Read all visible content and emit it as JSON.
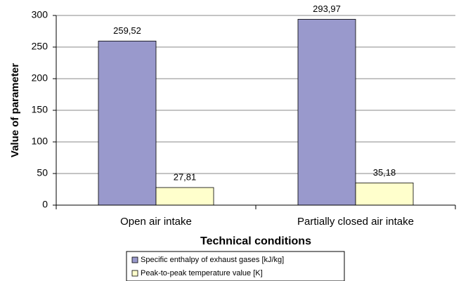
{
  "chart_data": {
    "type": "bar",
    "xlabel": "Technical conditions",
    "ylabel": "Value of parameter",
    "categories": [
      "Open air intake",
      "Partially closed air intake"
    ],
    "series": [
      {
        "name": "Specific enthalpy of exhaust gases [kJ/kg]",
        "color": "#9999cc",
        "values": [
          259.52,
          293.97
        ],
        "value_labels": [
          "259,52",
          "293,97"
        ]
      },
      {
        "name": "Peak-to-peak temperature value [K]",
        "color": "#ffffcc",
        "values": [
          27.81,
          35.18
        ],
        "value_labels": [
          "27,81",
          "35,18"
        ]
      }
    ],
    "ylim": [
      0,
      300
    ],
    "yticks": [
      0,
      50,
      100,
      150,
      200,
      250,
      300
    ],
    "grid": true,
    "legend": "bottom"
  }
}
